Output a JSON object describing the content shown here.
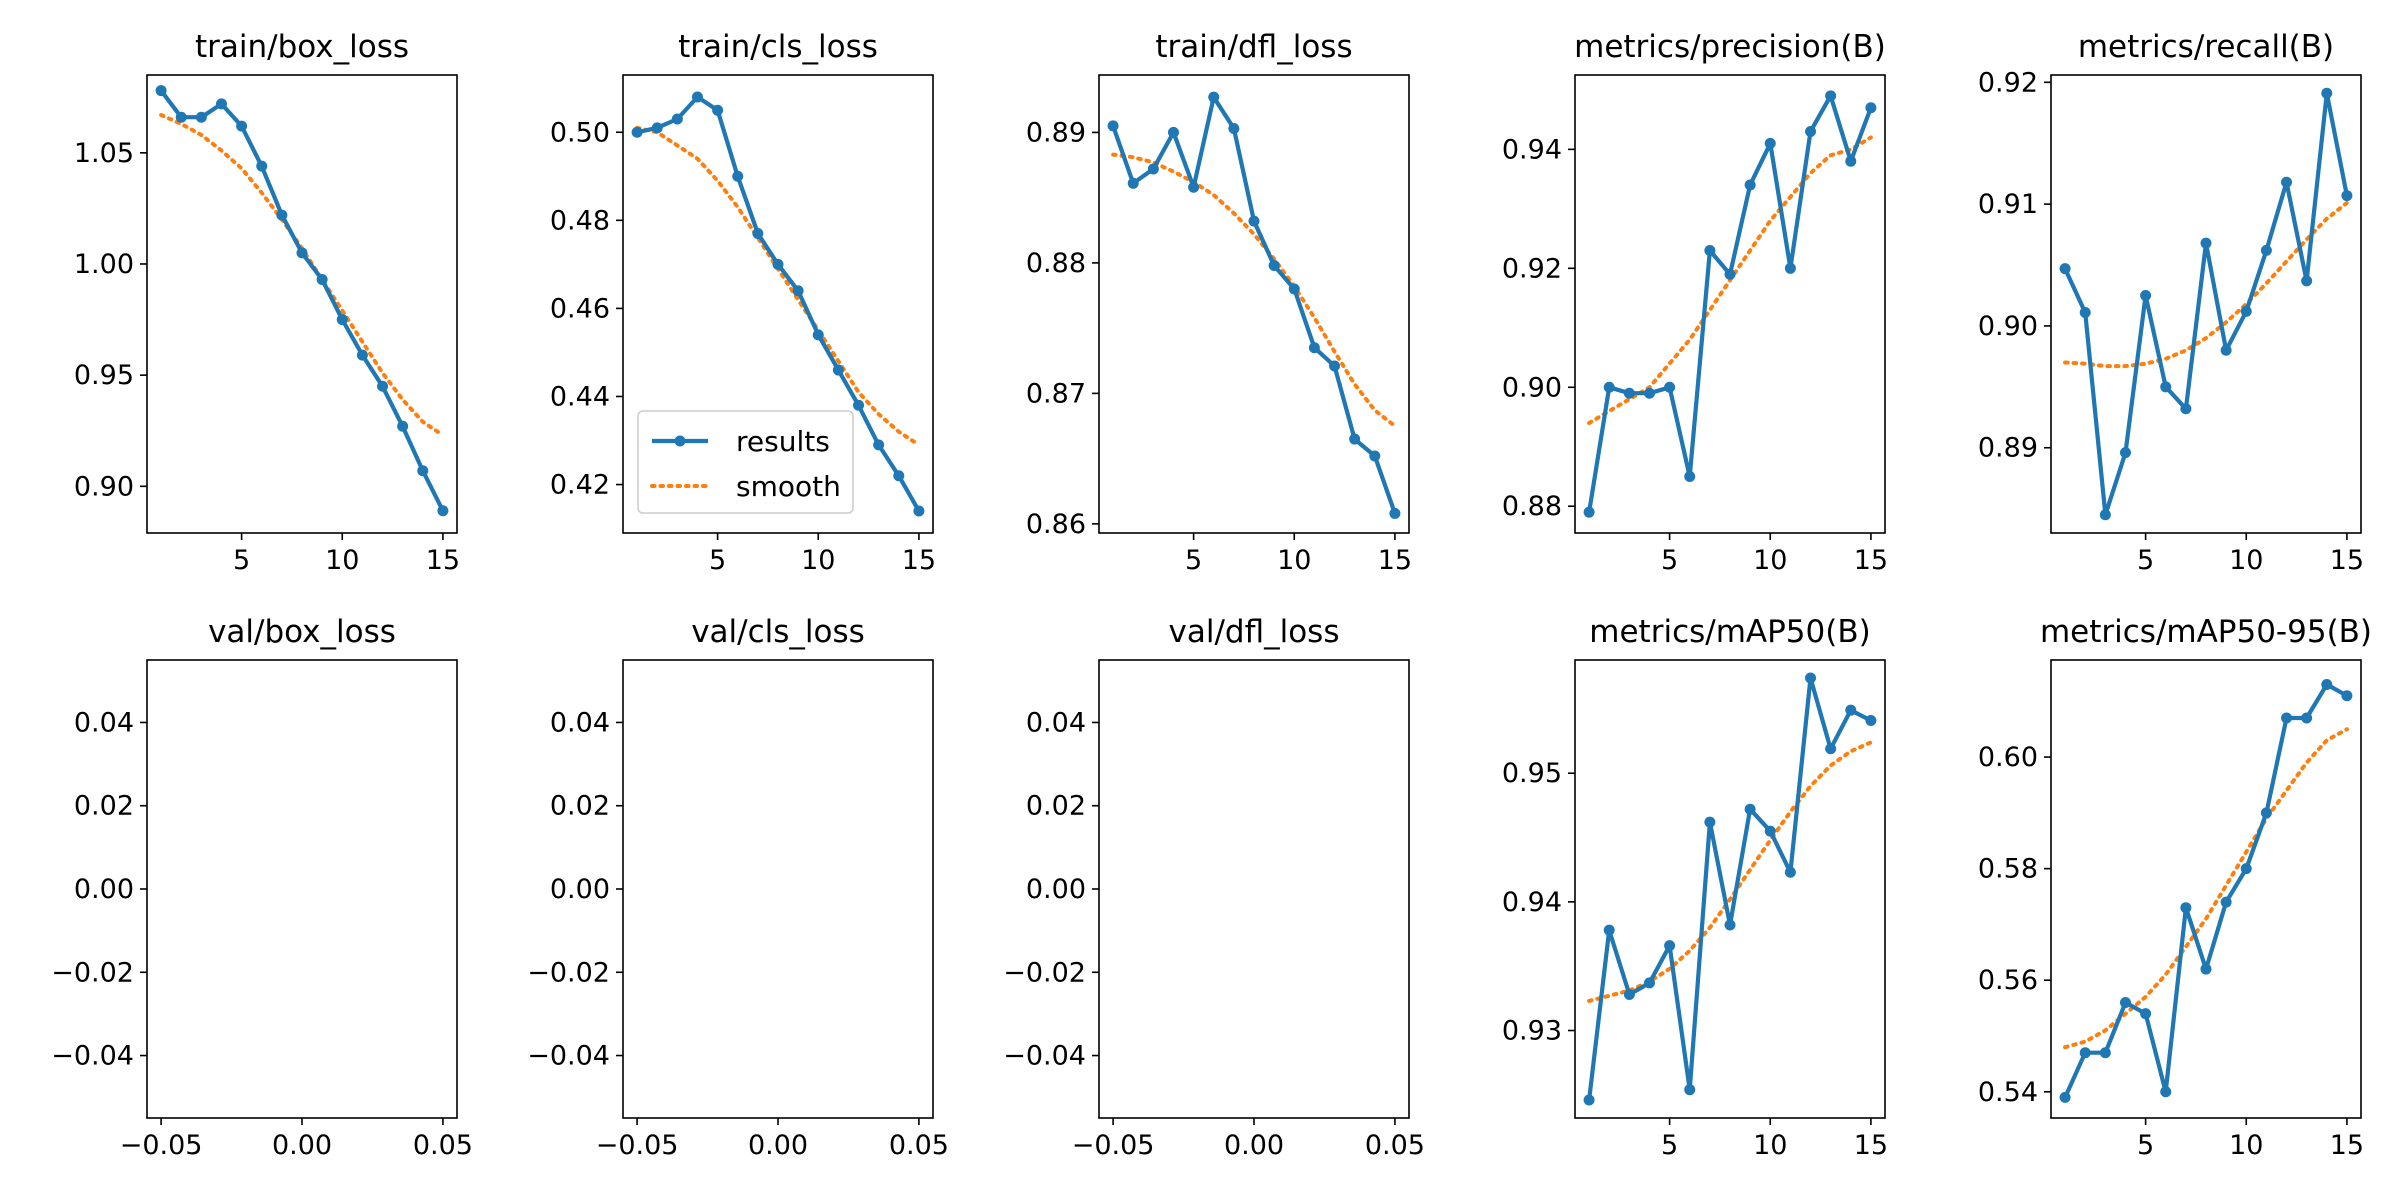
{
  "figure": {
    "background": "#ffffff",
    "colors": {
      "results": "#1f77b4",
      "smooth": "#ff7f0e"
    },
    "legend": {
      "placement": "lower-left",
      "panel": 1,
      "entries": [
        "results",
        "smooth"
      ]
    }
  },
  "chart_data": [
    {
      "type": "line",
      "title": "train/box_loss",
      "x": [
        1,
        2,
        3,
        4,
        5,
        6,
        7,
        8,
        9,
        10,
        11,
        12,
        13,
        14,
        15
      ],
      "xlim": [
        0.3,
        15.7
      ],
      "xticks": [
        5,
        10,
        15
      ],
      "xtick_labels": [
        "5",
        "10",
        "15"
      ],
      "ylim": [
        0.879,
        1.085
      ],
      "yticks": [
        0.9,
        0.95,
        1.0,
        1.05
      ],
      "ytick_labels": [
        "0.90",
        "0.95",
        "1.00",
        "1.05"
      ],
      "series": [
        {
          "name": "results",
          "style": "solid-markers",
          "values": [
            1.078,
            1.066,
            1.066,
            1.072,
            1.062,
            1.044,
            1.022,
            1.005,
            0.993,
            0.975,
            0.959,
            0.945,
            0.927,
            0.907,
            0.889
          ]
        },
        {
          "name": "smooth",
          "style": "dotted",
          "values": [
            1.067,
            1.063,
            1.058,
            1.051,
            1.043,
            1.032,
            1.02,
            1.007,
            0.993,
            0.979,
            0.965,
            0.951,
            0.939,
            0.929,
            0.923
          ]
        }
      ]
    },
    {
      "type": "line",
      "title": "train/cls_loss",
      "x": [
        1,
        2,
        3,
        4,
        5,
        6,
        7,
        8,
        9,
        10,
        11,
        12,
        13,
        14,
        15
      ],
      "xlim": [
        0.3,
        15.7
      ],
      "xticks": [
        5,
        10,
        15
      ],
      "xtick_labels": [
        "5",
        "10",
        "15"
      ],
      "ylim": [
        0.409,
        0.513
      ],
      "yticks": [
        0.42,
        0.44,
        0.46,
        0.48,
        0.5
      ],
      "ytick_labels": [
        "0.42",
        "0.44",
        "0.46",
        "0.48",
        "0.50"
      ],
      "series": [
        {
          "name": "results",
          "style": "solid-markers",
          "values": [
            0.5,
            0.501,
            0.503,
            0.508,
            0.505,
            0.49,
            0.477,
            0.47,
            0.464,
            0.454,
            0.446,
            0.438,
            0.429,
            0.422,
            0.414
          ]
        },
        {
          "name": "smooth",
          "style": "dotted",
          "values": [
            0.501,
            0.5,
            0.497,
            0.494,
            0.489,
            0.483,
            0.476,
            0.469,
            0.462,
            0.455,
            0.448,
            0.441,
            0.436,
            0.432,
            0.429
          ]
        }
      ]
    },
    {
      "type": "line",
      "title": "train/dfl_loss",
      "x": [
        1,
        2,
        3,
        4,
        5,
        6,
        7,
        8,
        9,
        10,
        11,
        12,
        13,
        14,
        15
      ],
      "xlim": [
        0.3,
        15.7
      ],
      "xticks": [
        5,
        10,
        15
      ],
      "xtick_labels": [
        "5",
        "10",
        "15"
      ],
      "ylim": [
        0.8593,
        0.8944
      ],
      "yticks": [
        0.86,
        0.87,
        0.88,
        0.89
      ],
      "ytick_labels": [
        "0.86",
        "0.87",
        "0.88",
        "0.89"
      ],
      "series": [
        {
          "name": "results",
          "style": "solid-markers",
          "values": [
            0.8905,
            0.8861,
            0.8872,
            0.89,
            0.8858,
            0.8927,
            0.8903,
            0.8832,
            0.8798,
            0.878,
            0.8735,
            0.8721,
            0.8665,
            0.8652,
            0.8608
          ]
        },
        {
          "name": "smooth",
          "style": "dotted",
          "values": [
            0.8883,
            0.8881,
            0.8877,
            0.887,
            0.8862,
            0.8852,
            0.8838,
            0.8822,
            0.8803,
            0.8782,
            0.8758,
            0.8732,
            0.8707,
            0.8687,
            0.8675
          ]
        }
      ]
    },
    {
      "type": "line",
      "title": "metrics/precision(B)",
      "x": [
        1,
        2,
        3,
        4,
        5,
        6,
        7,
        8,
        9,
        10,
        11,
        12,
        13,
        14,
        15
      ],
      "xlim": [
        0.3,
        15.7
      ],
      "xticks": [
        5,
        10,
        15
      ],
      "xtick_labels": [
        "5",
        "10",
        "15"
      ],
      "ylim": [
        0.8755,
        0.9525
      ],
      "yticks": [
        0.88,
        0.9,
        0.92,
        0.94
      ],
      "ytick_labels": [
        "0.88",
        "0.90",
        "0.92",
        "0.94"
      ],
      "series": [
        {
          "name": "results",
          "style": "solid-markers",
          "values": [
            0.879,
            0.9,
            0.899,
            0.899,
            0.9,
            0.885,
            0.923,
            0.919,
            0.934,
            0.941,
            0.92,
            0.943,
            0.949,
            0.938,
            0.947
          ]
        },
        {
          "name": "smooth",
          "style": "dotted",
          "values": [
            0.894,
            0.896,
            0.898,
            0.9,
            0.904,
            0.908,
            0.913,
            0.918,
            0.923,
            0.928,
            0.932,
            0.936,
            0.939,
            0.94,
            0.942
          ]
        }
      ]
    },
    {
      "type": "line",
      "title": "metrics/recall(B)",
      "x": [
        1,
        2,
        3,
        4,
        5,
        6,
        7,
        8,
        9,
        10,
        11,
        12,
        13,
        14,
        15
      ],
      "xlim": [
        0.3,
        15.7
      ],
      "xticks": [
        5,
        10,
        15
      ],
      "xtick_labels": [
        "5",
        "10",
        "15"
      ],
      "ylim": [
        0.883,
        0.9206
      ],
      "yticks": [
        0.89,
        0.9,
        0.91,
        0.92
      ],
      "ytick_labels": [
        "0.89",
        "0.90",
        "0.91",
        "0.92"
      ],
      "series": [
        {
          "name": "results",
          "style": "solid-markers",
          "values": [
            0.9047,
            0.9011,
            0.8845,
            0.8896,
            0.9025,
            0.895,
            0.8932,
            0.9068,
            0.898,
            0.9012,
            0.9062,
            0.9118,
            0.9037,
            0.9191,
            0.9107
          ]
        },
        {
          "name": "smooth",
          "style": "dotted",
          "values": [
            0.897,
            0.8969,
            0.8967,
            0.8967,
            0.8969,
            0.8973,
            0.898,
            0.899,
            0.9003,
            0.9018,
            0.9035,
            0.9053,
            0.9071,
            0.9088,
            0.9101
          ]
        }
      ]
    },
    {
      "type": "line",
      "title": "val/box_loss",
      "x": [],
      "xlim": [
        -0.055,
        0.055
      ],
      "xticks": [
        -0.05,
        0.0,
        0.05
      ],
      "xtick_labels": [
        "−0.05",
        "0.00",
        "0.05"
      ],
      "ylim": [
        -0.055,
        0.055
      ],
      "yticks": [
        -0.04,
        -0.02,
        0.0,
        0.02,
        0.04
      ],
      "ytick_labels": [
        "−0.04",
        "−0.02",
        "0.00",
        "0.02",
        "0.04"
      ],
      "series": []
    },
    {
      "type": "line",
      "title": "val/cls_loss",
      "x": [],
      "xlim": [
        -0.055,
        0.055
      ],
      "xticks": [
        -0.05,
        0.0,
        0.05
      ],
      "xtick_labels": [
        "−0.05",
        "0.00",
        "0.05"
      ],
      "ylim": [
        -0.055,
        0.055
      ],
      "yticks": [
        -0.04,
        -0.02,
        0.0,
        0.02,
        0.04
      ],
      "ytick_labels": [
        "−0.04",
        "−0.02",
        "0.00",
        "0.02",
        "0.04"
      ],
      "series": []
    },
    {
      "type": "line",
      "title": "val/dfl_loss",
      "x": [],
      "xlim": [
        -0.055,
        0.055
      ],
      "xticks": [
        -0.05,
        0.0,
        0.05
      ],
      "xtick_labels": [
        "−0.05",
        "0.00",
        "0.05"
      ],
      "ylim": [
        -0.055,
        0.055
      ],
      "yticks": [
        -0.04,
        -0.02,
        0.0,
        0.02,
        0.04
      ],
      "ytick_labels": [
        "−0.04",
        "−0.02",
        "0.00",
        "0.02",
        "0.04"
      ],
      "series": []
    },
    {
      "type": "line",
      "title": "metrics/mAP50(B)",
      "x": [
        1,
        2,
        3,
        4,
        5,
        6,
        7,
        8,
        9,
        10,
        11,
        12,
        13,
        14,
        15
      ],
      "xlim": [
        0.3,
        15.7
      ],
      "xticks": [
        5,
        10,
        15
      ],
      "xtick_labels": [
        "5",
        "10",
        "15"
      ],
      "ylim": [
        0.9232,
        0.9588
      ],
      "yticks": [
        0.93,
        0.94,
        0.95
      ],
      "ytick_labels": [
        "0.93",
        "0.94",
        "0.95"
      ],
      "series": [
        {
          "name": "results",
          "style": "solid-markers",
          "values": [
            0.9246,
            0.9378,
            0.9328,
            0.9337,
            0.9366,
            0.9254,
            0.9462,
            0.9382,
            0.9472,
            0.9455,
            0.9423,
            0.9574,
            0.9519,
            0.9549,
            0.9541
          ]
        },
        {
          "name": "smooth",
          "style": "dotted",
          "values": [
            0.9323,
            0.9327,
            0.9331,
            0.9338,
            0.9348,
            0.9362,
            0.938,
            0.9402,
            0.9425,
            0.9448,
            0.947,
            0.949,
            0.9506,
            0.9517,
            0.9524
          ]
        }
      ]
    },
    {
      "type": "line",
      "title": "metrics/mAP50-95(B)",
      "x": [
        1,
        2,
        3,
        4,
        5,
        6,
        7,
        8,
        9,
        10,
        11,
        12,
        13,
        14,
        15
      ],
      "xlim": [
        0.3,
        15.7
      ],
      "xticks": [
        5,
        10,
        15
      ],
      "xtick_labels": [
        "5",
        "10",
        "15"
      ],
      "ylim": [
        0.5353,
        0.6174
      ],
      "yticks": [
        0.54,
        0.56,
        0.58,
        0.6
      ],
      "ytick_labels": [
        "0.54",
        "0.56",
        "0.58",
        "0.60"
      ],
      "series": [
        {
          "name": "results",
          "style": "solid-markers",
          "values": [
            0.539,
            0.547,
            0.547,
            0.556,
            0.554,
            0.54,
            0.573,
            0.562,
            0.574,
            0.58,
            0.59,
            0.607,
            0.607,
            0.613,
            0.611
          ]
        },
        {
          "name": "smooth",
          "style": "dotted",
          "values": [
            0.548,
            0.549,
            0.551,
            0.554,
            0.557,
            0.561,
            0.566,
            0.571,
            0.577,
            0.583,
            0.589,
            0.594,
            0.599,
            0.603,
            0.605
          ]
        }
      ]
    }
  ]
}
